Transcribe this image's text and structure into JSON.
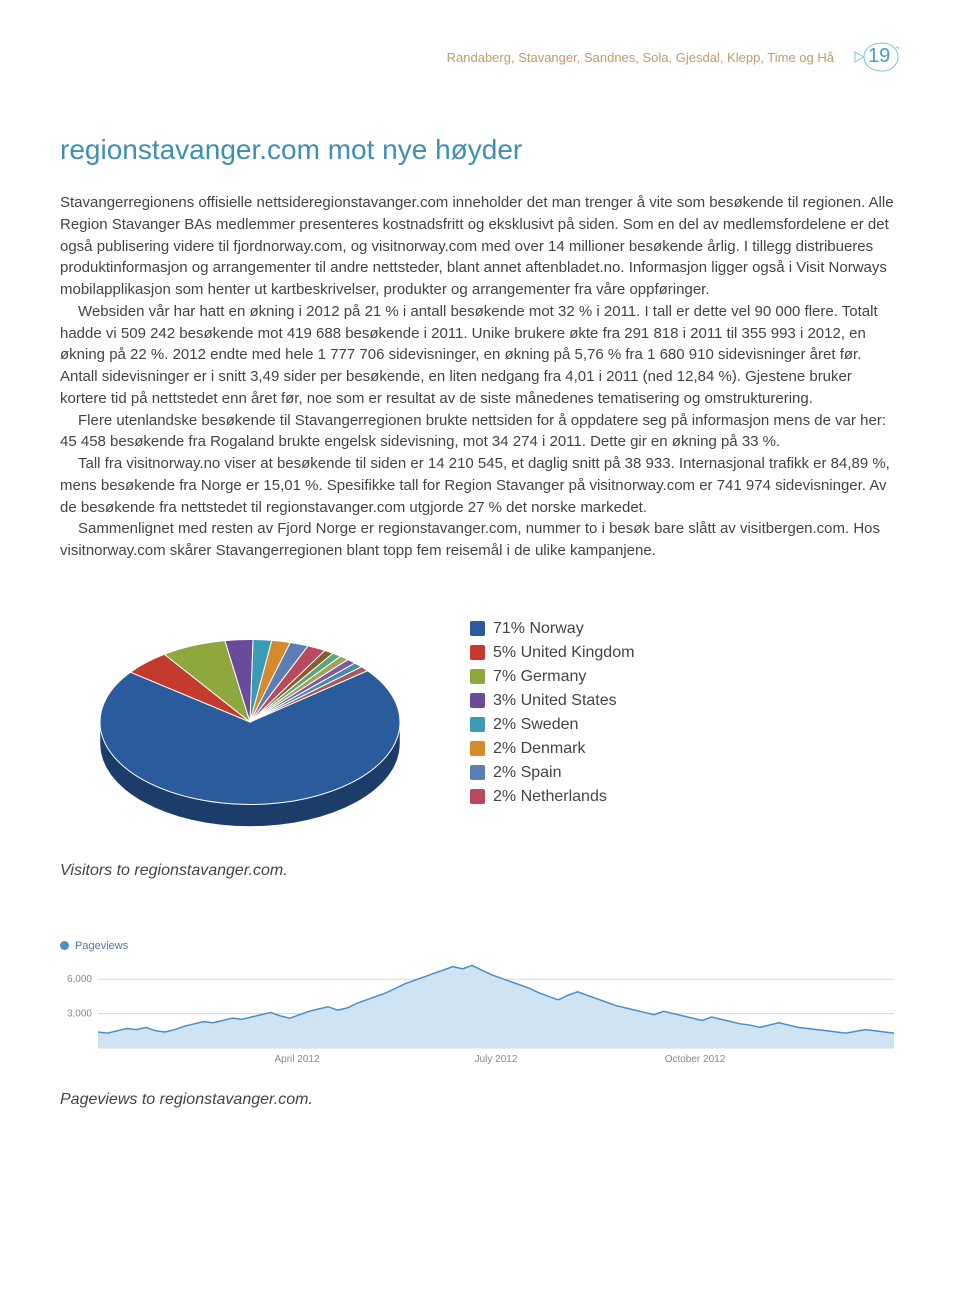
{
  "header": {
    "breadcrumb": "Randaberg, Stavanger, Sandnes, Sola, Gjesdal, Klepp, Time og Hå",
    "page_number": "19"
  },
  "title": "regionstavanger.com mot nye høyder",
  "paragraphs": [
    "Stavangerregionens offisielle nettsideregionstavanger.com inneholder det man trenger å vite som besøkende til regionen. Alle Region Stavanger BAs medlemmer presenteres kostnadsfritt og eksklusivt på siden. Som en del av medlemsfordelene er det også publisering videre til fjordnorway.com, og visitnorway.com med over 14 millioner besøkende årlig. I tillegg distribueres produktinformasjon og arrangementer til andre nettsteder, blant annet aftenbladet.no. Informasjon ligger også i Visit Norways mobilapplikasjon som henter ut kartbeskrivelser, produkter og arrangementer fra våre oppføringer.",
    "Websiden vår har hatt en økning i 2012 på 21 % i antall besøkende mot 32 % i 2011. I tall er dette vel 90 000 flere. Totalt hadde vi 509 242 besøkende mot 419 688 besøkende i 2011. Unike brukere økte fra 291 818 i 2011 til 355 993 i 2012, en økning på 22 %. 2012 endte med hele 1 777 706 sidevisninger, en økning på 5,76 % fra 1 680 910 sidevisninger året før. Antall sidevisninger er i snitt 3,49 sider per besøkende, en liten nedgang fra 4,01 i 2011 (ned 12,84 %). Gjestene bruker kortere tid på nettstedet enn året før, noe som er resultat av de siste månedenes tematisering og omstrukturering.",
    "Flere utenlandske besøkende til Stavangerregionen brukte nettsiden for å oppdatere seg på informasjon mens de var her: 45 458 besøkende fra Rogaland brukte engelsk sidevisning, mot 34 274 i 2011. Dette gir en økning på 33 %.",
    "Tall fra visitnorway.no viser at besøkende til siden er 14 210 545, et daglig snitt på 38 933. Internasjonal trafikk er 84,89 %, mens besøkende fra Norge er 15,01 %. Spesifikke tall for Region Stavanger på visitnorway.com er 741 974 sidevisninger. Av de besøkende fra nettstedet til regionstavanger.com utgjorde 27 % det norske markedet.",
    "Sammenlignet med resten av Fjord Norge er regionstavanger.com, nummer to i besøk bare slått av visitbergen.com. Hos visitnorway.com skårer Stavangerregionen blant topp fem reisemål i de ulike kampanjene."
  ],
  "pie": {
    "type": "pie",
    "caption": "Visitors to regionstavanger.com.",
    "legend": [
      {
        "pct": "71%",
        "label": "Norway",
        "color": "#2a5b9c"
      },
      {
        "pct": "5%",
        "label": "United Kingdom",
        "color": "#c43a2e"
      },
      {
        "pct": "7%",
        "label": "Germany",
        "color": "#8fa83d"
      },
      {
        "pct": "3%",
        "label": "United States",
        "color": "#6a4a9c"
      },
      {
        "pct": "2%",
        "label": "Sweden",
        "color": "#3a9bb5"
      },
      {
        "pct": "2%",
        "label": "Denmark",
        "color": "#d68a2e"
      },
      {
        "pct": "2%",
        "label": "Spain",
        "color": "#5b7fb5"
      },
      {
        "pct": "2%",
        "label": "Netherlands",
        "color": "#b84a5e"
      }
    ],
    "slices": [
      {
        "value": 71,
        "color": "#2a5b9c"
      },
      {
        "value": 5,
        "color": "#c43a2e"
      },
      {
        "value": 7,
        "color": "#8fa83d"
      },
      {
        "value": 3,
        "color": "#6a4a9c"
      },
      {
        "value": 2,
        "color": "#3a9bb5"
      },
      {
        "value": 2,
        "color": "#d68a2e"
      },
      {
        "value": 2,
        "color": "#5b7fb5"
      },
      {
        "value": 2,
        "color": "#b84a5e"
      },
      {
        "value": 1,
        "color": "#8a5a2e"
      },
      {
        "value": 1,
        "color": "#5aa87a"
      },
      {
        "value": 1,
        "color": "#a8a05a"
      },
      {
        "value": 1,
        "color": "#7a5aa8"
      },
      {
        "value": 1,
        "color": "#4a8aa8"
      },
      {
        "value": 1,
        "color": "#a85a5a"
      }
    ],
    "tilt": 0.55,
    "radius": 150,
    "depth": 22,
    "stroke": "#ffffff"
  },
  "area": {
    "type": "area",
    "caption": "Pageviews to regionstavanger.com.",
    "series_label": "Pageviews",
    "series_color": "#4a90c7",
    "fill_color": "#cfe3f2",
    "grid_color": "#d8d8d8",
    "yticks": [
      3000,
      6000
    ],
    "ytick_labels": [
      "3,000",
      "6,000"
    ],
    "ymax": 7500,
    "xticks": [
      {
        "label": "April 2012",
        "pos": 0.25
      },
      {
        "label": "July 2012",
        "pos": 0.5
      },
      {
        "label": "October 2012",
        "pos": 0.75
      }
    ],
    "values": [
      1400,
      1300,
      1500,
      1700,
      1600,
      1800,
      1500,
      1400,
      1600,
      1900,
      2100,
      2300,
      2200,
      2400,
      2600,
      2500,
      2700,
      2900,
      3100,
      2800,
      2600,
      2900,
      3200,
      3400,
      3600,
      3300,
      3500,
      3900,
      4200,
      4500,
      4800,
      5200,
      5600,
      5900,
      6200,
      6500,
      6800,
      7100,
      6900,
      7200,
      6800,
      6400,
      6100,
      5800,
      5500,
      5200,
      4800,
      4500,
      4200,
      4600,
      4900,
      4600,
      4300,
      4000,
      3700,
      3500,
      3300,
      3100,
      2900,
      3200,
      3000,
      2800,
      2600,
      2400,
      2700,
      2500,
      2300,
      2100,
      2000,
      1800,
      2000,
      2200,
      2000,
      1800,
      1700,
      1600,
      1500,
      1400,
      1300,
      1450,
      1600,
      1500,
      1400,
      1300
    ]
  }
}
